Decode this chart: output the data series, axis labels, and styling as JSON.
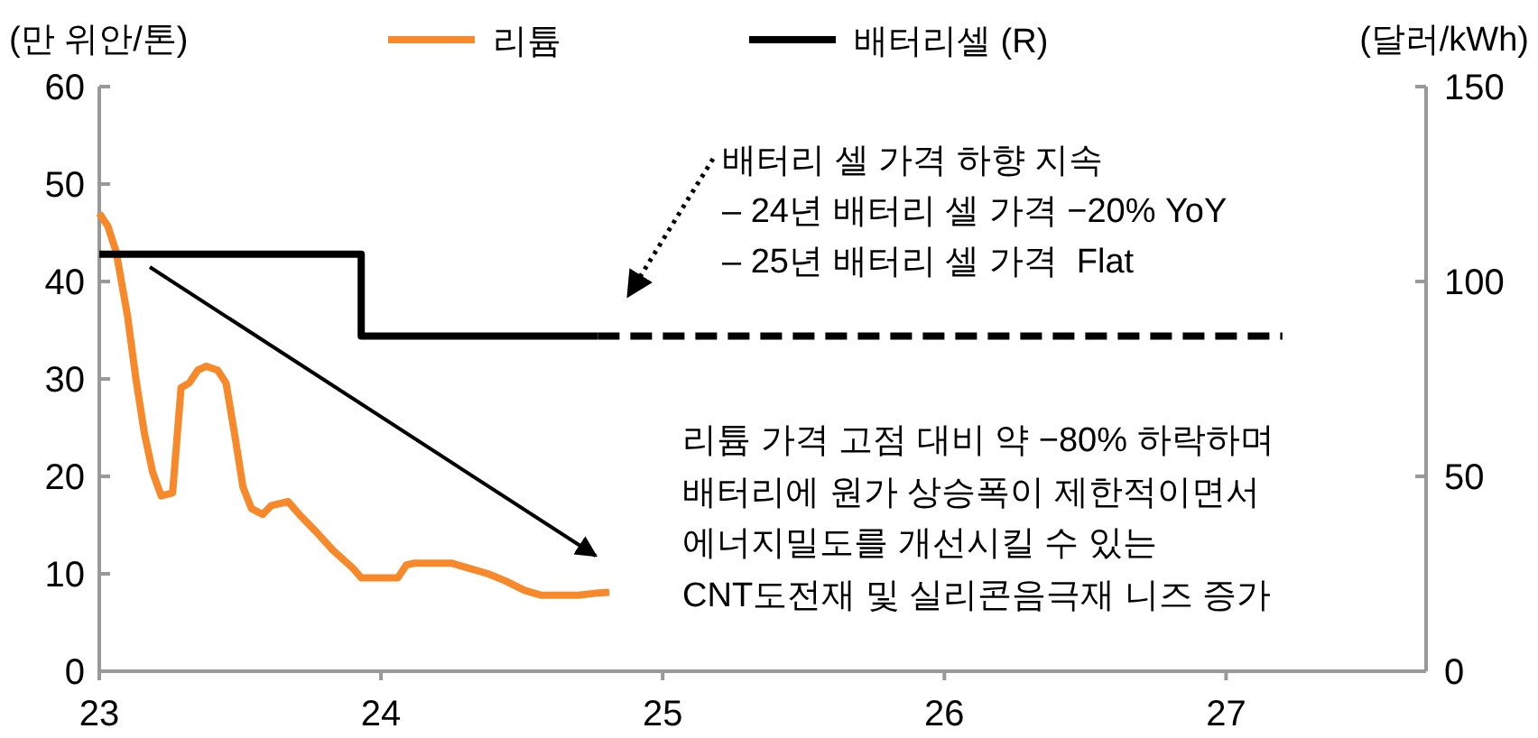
{
  "chart_data": {
    "type": "line",
    "ylabel": "(만 위안/톤)",
    "y2label": "(달러/kWh)",
    "xlim": [
      23,
      27.71
    ],
    "xticks": [
      23,
      24,
      25,
      26,
      27
    ],
    "ylim": [
      0,
      60
    ],
    "yticks": [
      0,
      10,
      20,
      30,
      40,
      50,
      60
    ],
    "y2lim": [
      0,
      150
    ],
    "y2ticks": [
      0,
      50,
      100,
      150
    ],
    "legend": "top",
    "grid": false,
    "series": [
      {
        "name": "리튬",
        "color": "#f7892a",
        "x": [
          23,
          23.03,
          23.06,
          23.1,
          23.13,
          23.16,
          23.19,
          23.22,
          23.26,
          23.29,
          23.32,
          23.35,
          23.38,
          23.42,
          23.45,
          23.48,
          23.51,
          23.54,
          23.58,
          23.61,
          23.67,
          23.71,
          23.77,
          23.83,
          23.9,
          23.93,
          24.06,
          24.09,
          24.12,
          24.25,
          24.31,
          24.38,
          24.44,
          24.51,
          24.57,
          24.7,
          24.76,
          24.81
        ],
        "values": [
          47.0,
          45.7,
          43.0,
          36.5,
          30.0,
          24.4,
          20.4,
          18.0,
          18.3,
          29.1,
          29.6,
          30.9,
          31.3,
          30.9,
          29.6,
          24.4,
          18.9,
          16.7,
          16.1,
          17.0,
          17.4,
          16.1,
          14.3,
          12.4,
          10.6,
          9.6,
          9.6,
          10.9,
          11.1,
          11.1,
          10.6,
          10.0,
          9.3,
          8.3,
          7.8,
          7.8,
          8.0,
          8.1
        ]
      },
      {
        "name": "배터리셀 (R)",
        "color": "#000000",
        "axis": "y2",
        "x": [
          23,
          23.93,
          23.93,
          24.77
        ],
        "values": [
          107,
          107,
          86,
          86
        ]
      },
      {
        "color": "#000000",
        "axis": "y2",
        "line_style": "dashed",
        "x": [
          24.77,
          27.2
        ],
        "values": [
          86,
          86
        ]
      }
    ],
    "annotations": [
      "배터리 셀 가격 하향 지속",
      "– 24년 배터리 셀 가격 −20% YoY",
      "– 25년 배터리 셀 가격  Flat",
      "리튬 가격 고점 대비 약 −80% 하락하며",
      "배터리에 원가 상승폭이 제한적이면서",
      "에너지밀도를 개선시킬 수 있는",
      "CNT도전재 및 실리콘음극재 니즈 증가"
    ]
  }
}
